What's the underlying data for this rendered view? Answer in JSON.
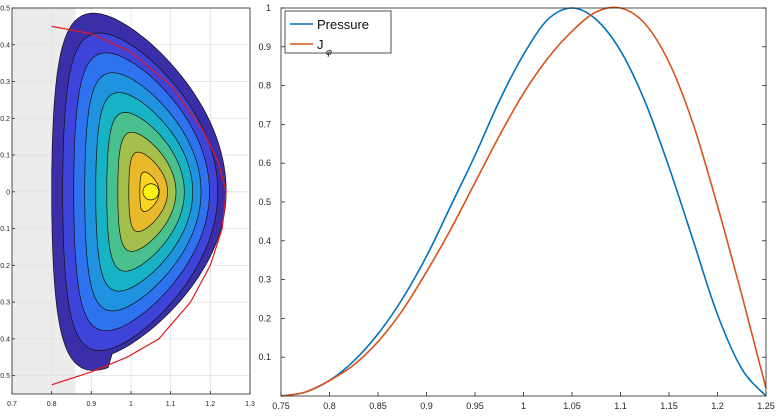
{
  "chart_data": [
    {
      "type": "contour",
      "xlim": [
        0.7,
        1.3
      ],
      "ylim": [
        -0.55,
        0.5
      ],
      "xticks": [
        "0.7",
        "0.8",
        "0.9",
        "1",
        "1.1",
        "1.2",
        "1.3"
      ],
      "yticks": [
        "-0.5",
        "-0.4",
        "-0.3",
        "-0.2",
        "-0.1",
        "0",
        "0.1",
        "0.2",
        "0.3",
        "0.4",
        "0.5"
      ],
      "grid": true,
      "boundary": {
        "color": "#e41a1c",
        "points": [
          [
            0.8,
            0.45
          ],
          [
            0.9,
            0.43
          ],
          [
            1.0,
            0.38
          ],
          [
            1.1,
            0.29
          ],
          [
            1.18,
            0.17
          ],
          [
            1.22,
            0.08
          ],
          [
            1.24,
            0.0
          ],
          [
            1.23,
            -0.1
          ],
          [
            1.2,
            -0.2
          ],
          [
            1.15,
            -0.3
          ],
          [
            1.07,
            -0.4
          ],
          [
            0.99,
            -0.45
          ],
          [
            0.9,
            -0.49
          ],
          [
            0.8,
            -0.525
          ]
        ]
      },
      "magnetic_axis": [
        1.05,
        0.0
      ],
      "levels": 9,
      "colors": [
        "#3a2fa9",
        "#3e44d9",
        "#2f72f0",
        "#1f93e0",
        "#18b2c5",
        "#4bc08f",
        "#a4bf4c",
        "#e9b92b",
        "#fad41e",
        "#f9f314"
      ]
    },
    {
      "type": "line",
      "xlim": [
        0.75,
        1.25
      ],
      "ylim": [
        0,
        1
      ],
      "xticks": [
        "0.75",
        "0.8",
        "0.85",
        "0.9",
        "0.95",
        "1",
        "1.05",
        "1.1",
        "1.15",
        "1.2",
        "1.25"
      ],
      "yticks": [
        "0.1",
        "0.2",
        "0.3",
        "0.4",
        "0.5",
        "0.6",
        "0.7",
        "0.8",
        "0.9",
        "1"
      ],
      "legend_position": "top-left",
      "series": [
        {
          "name": "Pressure",
          "color": "#0072bd",
          "x": [
            0.75,
            0.775,
            0.8,
            0.825,
            0.85,
            0.875,
            0.9,
            0.925,
            0.95,
            0.975,
            1.0,
            1.025,
            1.05,
            1.075,
            1.1,
            1.125,
            1.15,
            1.175,
            1.2,
            1.225,
            1.25
          ],
          "y": [
            0.0,
            0.01,
            0.04,
            0.09,
            0.16,
            0.25,
            0.36,
            0.49,
            0.62,
            0.76,
            0.88,
            0.97,
            1.0,
            0.97,
            0.89,
            0.76,
            0.59,
            0.4,
            0.21,
            0.07,
            0.0
          ]
        },
        {
          "name": "J",
          "subscript": "φ",
          "color": "#d95319",
          "x": [
            0.75,
            0.775,
            0.8,
            0.825,
            0.85,
            0.875,
            0.9,
            0.925,
            0.95,
            0.975,
            1.0,
            1.025,
            1.05,
            1.075,
            1.1,
            1.125,
            1.15,
            1.175,
            1.2,
            1.225,
            1.25
          ],
          "y": [
            0.0,
            0.01,
            0.04,
            0.08,
            0.14,
            0.22,
            0.32,
            0.43,
            0.55,
            0.67,
            0.78,
            0.87,
            0.94,
            0.99,
            1.0,
            0.96,
            0.86,
            0.7,
            0.49,
            0.26,
            0.02
          ]
        }
      ]
    }
  ]
}
